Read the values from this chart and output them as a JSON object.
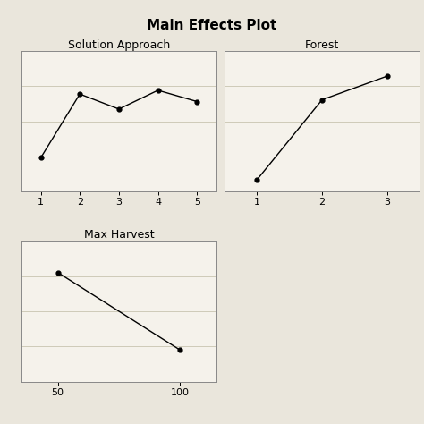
{
  "title": "Main Effects Plot",
  "background_color": "#eae6dc",
  "plot_bg_color": "#f5f2eb",
  "title_fontsize": 11,
  "label_fontsize": 9,
  "tick_fontsize": 8,
  "solution_approach": {
    "label": "Solution Approach",
    "x": [
      1,
      2,
      3,
      4,
      5
    ],
    "y": [
      0.18,
      0.52,
      0.44,
      0.54,
      0.48
    ]
  },
  "forest": {
    "label": "Forest",
    "x": [
      1,
      2,
      3
    ],
    "y": [
      0.08,
      0.62,
      0.78
    ]
  },
  "max_harvest": {
    "label": "Max Harvest",
    "x": [
      50,
      100
    ],
    "y": [
      0.72,
      0.28
    ]
  }
}
